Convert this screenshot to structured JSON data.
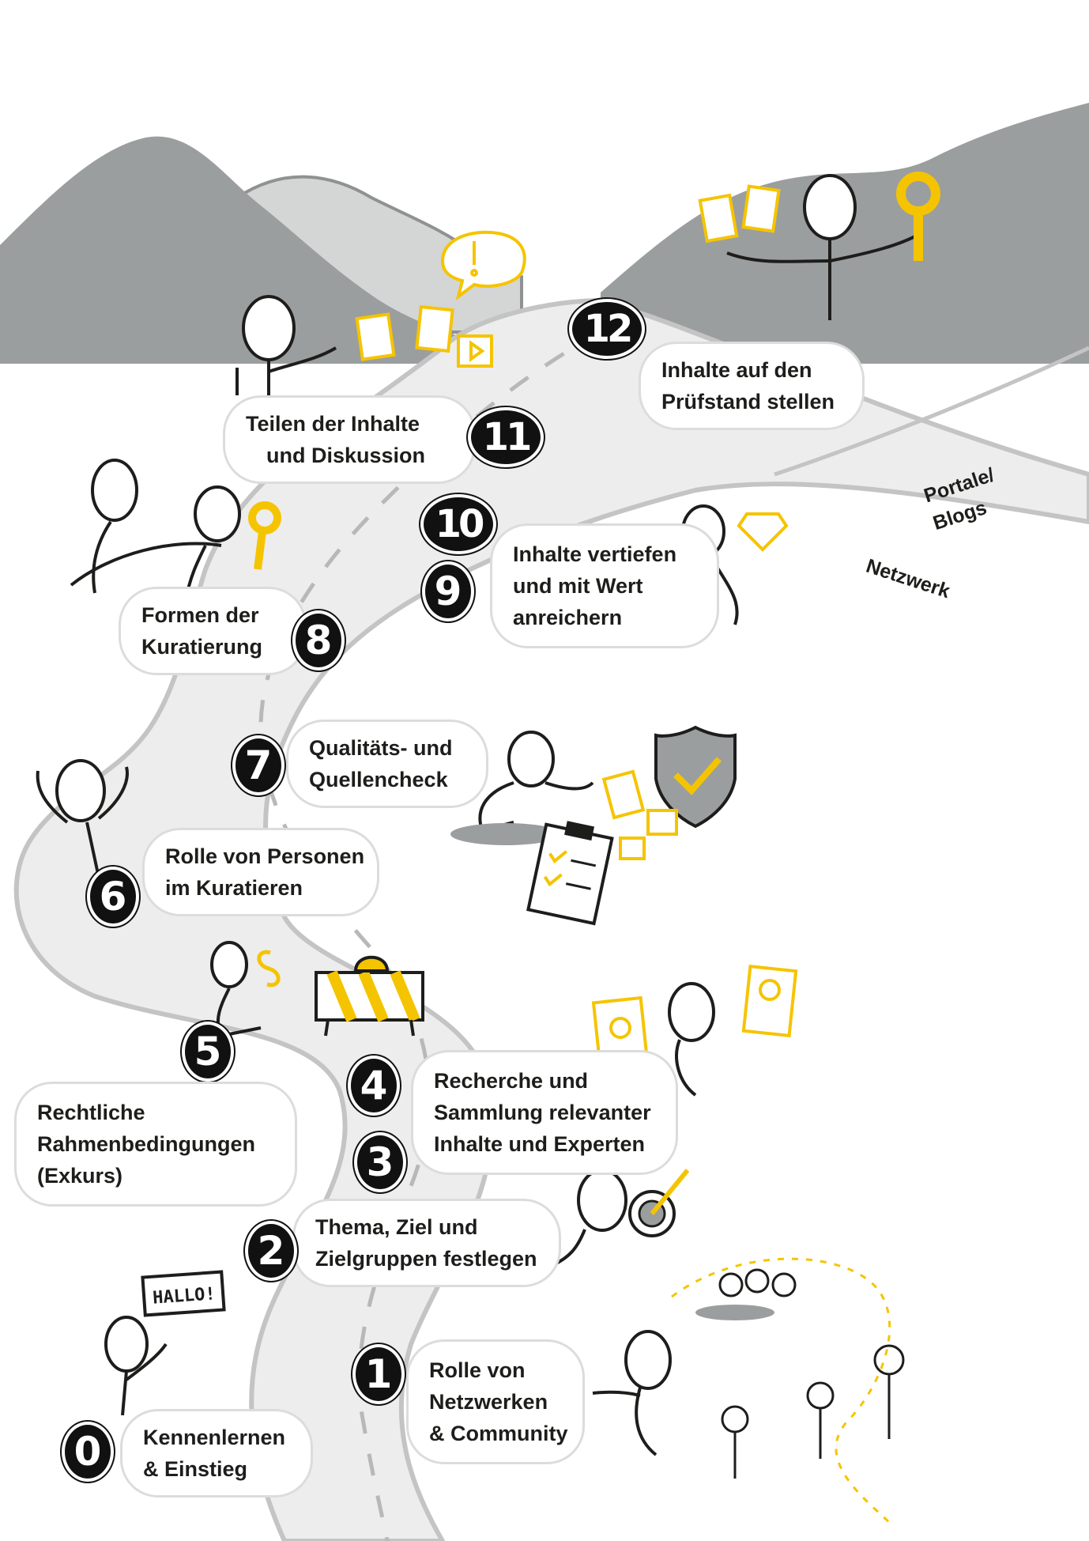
{
  "colors": {
    "yellow": "#f5c400",
    "mountain_dark": "#9b9e9f",
    "mountain_light": "#d4d5d5",
    "road": "#ededed",
    "road_edge": "#c4c4c4",
    "ink": "#1d1d1b",
    "badge": "#111111"
  },
  "road_labels": {
    "portale": "Portale/",
    "blogs": "Blogs",
    "netzwerk": "Netzwerk"
  },
  "hallo_sign": "HALLO!",
  "steps": [
    {
      "number": "0",
      "line1": "Kennenlernen",
      "line2": "& Einstieg",
      "line3": ""
    },
    {
      "number": "1",
      "line1": "Rolle von",
      "line2": "Netzwerken",
      "line3": "& Community"
    },
    {
      "number": "2",
      "line1": "Thema, Ziel und",
      "line2": "Zielgruppen festlegen",
      "line3": ""
    },
    {
      "number": "3",
      "line1": "",
      "line2": "",
      "line3": ""
    },
    {
      "number": "4",
      "line1": "Recherche und",
      "line2": "Sammlung relevanter",
      "line3": "Inhalte und Experten"
    },
    {
      "number": "5",
      "line1": "Rechtliche",
      "line2": "Rahmenbedingungen",
      "line3": "(Exkurs)"
    },
    {
      "number": "6",
      "line1": "Rolle von Personen",
      "line2": "im Kuratieren",
      "line3": ""
    },
    {
      "number": "7",
      "line1": "Qualitäts- und",
      "line2": "Quellencheck",
      "line3": ""
    },
    {
      "number": "8",
      "line1": "Formen der",
      "line2": "Kuratierung",
      "line3": ""
    },
    {
      "number": "9",
      "line1": "Inhalte vertiefen",
      "line2": "und mit Wert",
      "line3": "anreichern"
    },
    {
      "number": "10",
      "line1": "",
      "line2": "",
      "line3": ""
    },
    {
      "number": "11",
      "line1": "Teilen der Inhalte",
      "line2": "und Diskussion",
      "line3": ""
    },
    {
      "number": "12",
      "line1": "Inhalte auf den",
      "line2": "Prüfstand stellen",
      "line3": ""
    }
  ]
}
